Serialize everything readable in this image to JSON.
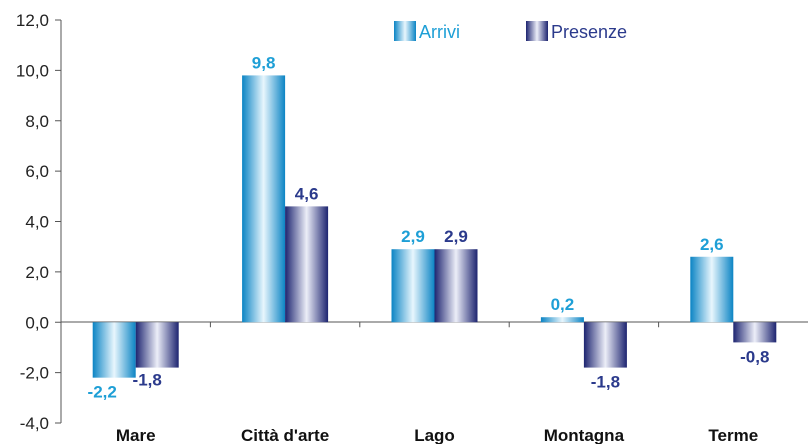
{
  "chart_data": {
    "type": "bar",
    "categories": [
      "Mare",
      "Città d'arte",
      "Lago",
      "Montagna",
      "Terme"
    ],
    "series": [
      {
        "name": "Arrivi",
        "values": [
          -2.2,
          9.8,
          2.9,
          0.2,
          2.6
        ],
        "labels": [
          "-2,2",
          "9,8",
          "2,9",
          "0,2",
          "2,6"
        ],
        "color": "#1e9fd6"
      },
      {
        "name": "Presenze",
        "values": [
          -1.8,
          4.6,
          2.9,
          -1.8,
          -0.8
        ],
        "labels": [
          "-1,8",
          "4,6",
          "2,9",
          "-1,8",
          "-0,8"
        ],
        "color": "#2b3a8c"
      }
    ],
    "ylim": [
      -4.0,
      12.0
    ],
    "yticks": [
      -4.0,
      -2.0,
      0.0,
      2.0,
      4.0,
      6.0,
      8.0,
      10.0,
      12.0
    ],
    "ytick_labels": [
      "-4,0",
      "-2,0",
      "0,0",
      "2,0",
      "4,0",
      "6,0",
      "8,0",
      "10,0",
      "12,0"
    ],
    "legend_position": "top-center",
    "grid": false
  }
}
